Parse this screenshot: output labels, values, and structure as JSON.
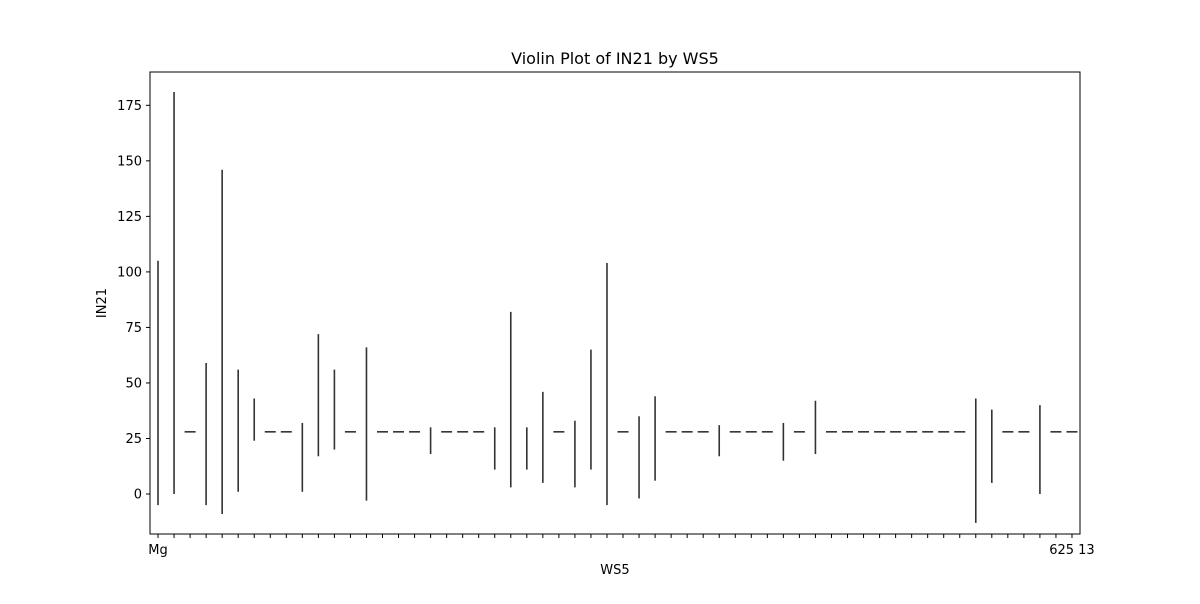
{
  "chart_data": {
    "type": "violin",
    "title": "Violin Plot of IN21 by WS5",
    "xlabel": "WS5",
    "ylabel": "IN21",
    "ylim": [
      -18,
      190
    ],
    "yticks": [
      "0",
      "25",
      "50",
      "75",
      "100",
      "125",
      "150",
      "175"
    ],
    "legend": "none",
    "grid": false,
    "line_color": "#333333",
    "categories": [
      {
        "min": -5,
        "max": 105
      },
      {
        "min": 0,
        "max": 181
      },
      {
        "min": 28,
        "max": 28
      },
      {
        "min": -5,
        "max": 59
      },
      {
        "min": -9,
        "max": 146
      },
      {
        "min": 1,
        "max": 56
      },
      {
        "min": 24,
        "max": 43
      },
      {
        "min": 28,
        "max": 28
      },
      {
        "min": 28,
        "max": 28
      },
      {
        "min": 1,
        "max": 32
      },
      {
        "min": 17,
        "max": 72
      },
      {
        "min": 20,
        "max": 56
      },
      {
        "min": 28,
        "max": 28
      },
      {
        "min": -3,
        "max": 66
      },
      {
        "min": 28,
        "max": 28
      },
      {
        "min": 28,
        "max": 28
      },
      {
        "min": 28,
        "max": 28
      },
      {
        "min": 18,
        "max": 30
      },
      {
        "min": 28,
        "max": 28
      },
      {
        "min": 28,
        "max": 28
      },
      {
        "min": 28,
        "max": 28
      },
      {
        "min": 11,
        "max": 30
      },
      {
        "min": 3,
        "max": 82
      },
      {
        "min": 11,
        "max": 30
      },
      {
        "min": 5,
        "max": 46
      },
      {
        "min": 28,
        "max": 28
      },
      {
        "min": 3,
        "max": 33
      },
      {
        "min": 11,
        "max": 65
      },
      {
        "min": -5,
        "max": 104
      },
      {
        "min": 28,
        "max": 28
      },
      {
        "min": -2,
        "max": 35
      },
      {
        "min": 6,
        "max": 44
      },
      {
        "min": 28,
        "max": 28
      },
      {
        "min": 28,
        "max": 28
      },
      {
        "min": 28,
        "max": 28
      },
      {
        "min": 17,
        "max": 31
      },
      {
        "min": 28,
        "max": 28
      },
      {
        "min": 28,
        "max": 28
      },
      {
        "min": 28,
        "max": 28
      },
      {
        "min": 15,
        "max": 32
      },
      {
        "min": 28,
        "max": 28
      },
      {
        "min": 18,
        "max": 42
      },
      {
        "min": 28,
        "max": 28
      },
      {
        "min": 28,
        "max": 28
      },
      {
        "min": 28,
        "max": 28
      },
      {
        "min": 28,
        "max": 28
      },
      {
        "min": 28,
        "max": 28
      },
      {
        "min": 28,
        "max": 28
      },
      {
        "min": 28,
        "max": 28
      },
      {
        "min": 28,
        "max": 28
      },
      {
        "min": 28,
        "max": 28
      },
      {
        "min": -13,
        "max": 43
      },
      {
        "min": 5,
        "max": 38
      },
      {
        "min": 28,
        "max": 28
      },
      {
        "min": 28,
        "max": 28
      },
      {
        "min": 0,
        "max": 40
      },
      {
        "min": 28,
        "max": 28
      },
      {
        "min": 28,
        "max": 28
      }
    ],
    "x_tick_labels_visible": [
      {
        "index": 0,
        "label": "Mg"
      },
      {
        "index": 57,
        "label": "625 13"
      }
    ]
  }
}
